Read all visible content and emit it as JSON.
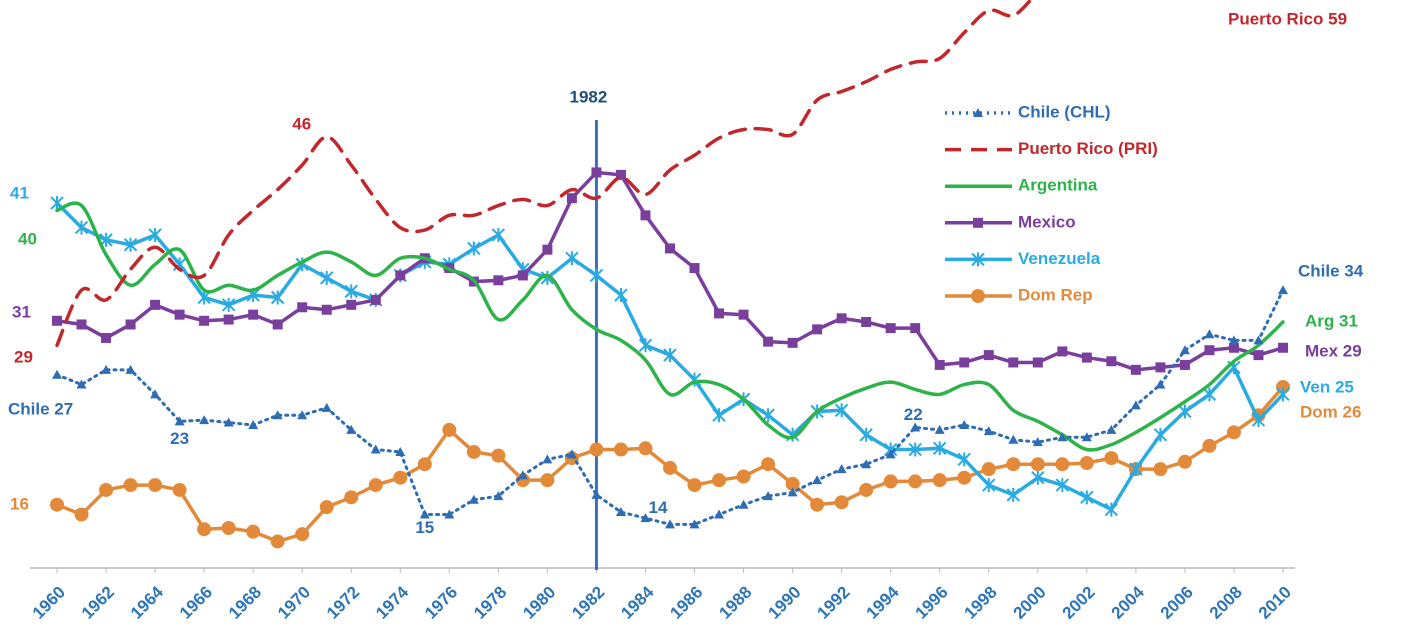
{
  "chart_data": {
    "type": "line",
    "x": [
      1960,
      1961,
      1962,
      1963,
      1964,
      1965,
      1966,
      1967,
      1968,
      1969,
      1970,
      1971,
      1972,
      1973,
      1974,
      1975,
      1976,
      1977,
      1978,
      1979,
      1980,
      1981,
      1982,
      1983,
      1984,
      1985,
      1986,
      1987,
      1988,
      1989,
      1990,
      1991,
      1992,
      1993,
      1994,
      1995,
      1996,
      1997,
      1998,
      1999,
      2000,
      2001,
      2002,
      2003,
      2004,
      2005,
      2006,
      2007,
      2008,
      2009,
      2010
    ],
    "xlim": [
      1960,
      2010
    ],
    "xticks": [
      1960,
      1962,
      1964,
      1966,
      1968,
      1970,
      1972,
      1974,
      1976,
      1978,
      1980,
      1982,
      1984,
      1986,
      1988,
      1990,
      1992,
      1994,
      1996,
      1998,
      2000,
      2002,
      2004,
      2006,
      2008,
      2010
    ],
    "ylim": [
      11,
      57
    ],
    "vline": 1982,
    "series": [
      {
        "name": "Chile (CHL)",
        "color": "#2e6db4",
        "style": "dotted",
        "marker": "triangle",
        "start_label": "Chile 27",
        "end_label": "Chile 34",
        "point_labels": [
          {
            "x": 1965,
            "label": "23"
          },
          {
            "x": 1975,
            "label": "15"
          },
          {
            "x": 1985,
            "label": "14"
          },
          {
            "x": 1995,
            "label": "22"
          }
        ],
        "values": [
          26.6,
          25.8,
          27,
          27,
          25,
          22.8,
          22.9,
          22.7,
          22.5,
          23.3,
          23.3,
          23.9,
          22.1,
          20.5,
          20.3,
          15.2,
          15.2,
          16.4,
          16.7,
          18.4,
          19.7,
          20.1,
          16.8,
          15.4,
          14.9,
          14.4,
          14.4,
          15.2,
          16,
          16.7,
          17,
          18,
          18.9,
          19.3,
          20.1,
          22.3,
          22.1,
          22.5,
          22,
          21.3,
          21.1,
          21.5,
          21.5,
          22.1,
          24.1,
          25.8,
          28.6,
          29.9,
          29.4,
          29.4,
          33.5
        ]
      },
      {
        "name": "Puerto Rico (PRI)",
        "color": "#c0282d",
        "style": "dashed",
        "smooth": true,
        "start_label": "29",
        "end_label": "Puerto Rico 59",
        "point_labels": [
          {
            "x": 1971,
            "label": "46"
          }
        ],
        "values": [
          29,
          33.5,
          32.7,
          35.2,
          37,
          35.2,
          34.7,
          38,
          40,
          41.7,
          43.7,
          46,
          43.7,
          40.9,
          38.6,
          38.4,
          39.6,
          39.6,
          40.4,
          40.9,
          40.4,
          41.7,
          41,
          42.7,
          41.3,
          43.3,
          44.5,
          45.9,
          46.6,
          46.6,
          46.2,
          49,
          49.7,
          50.5,
          51.5,
          52.1,
          52.4,
          54.5,
          56.3,
          55.9,
          57.6,
          57.8,
          58,
          58.1,
          58.2,
          58.4,
          58.5,
          58.6,
          58.8,
          58.9,
          59
        ]
      },
      {
        "name": "Argentina",
        "color": "#2db34a",
        "style": "solid",
        "smooth": true,
        "start_label": "40",
        "end_label": "Arg 31",
        "values": [
          40,
          40.4,
          36.4,
          33.9,
          35.6,
          36.8,
          33.5,
          33.9,
          33.5,
          34.7,
          35.8,
          36.6,
          35.8,
          34.7,
          36.1,
          36.1,
          35.2,
          34.3,
          31.1,
          32.7,
          34.7,
          31.9,
          30.3,
          29.4,
          27.8,
          25,
          26,
          25.8,
          24.6,
          22.5,
          21.5,
          23.6,
          24.7,
          25.5,
          26,
          25.4,
          25,
          25.8,
          25.8,
          23.7,
          22.8,
          21.7,
          20.5,
          20.9,
          21.9,
          23.1,
          24.4,
          25.8,
          27.7,
          29,
          30.9
        ]
      },
      {
        "name": "Mexico",
        "color": "#7a3f9d",
        "style": "solid",
        "marker": "square",
        "start_label": "31",
        "end_label": "Mex 29",
        "values": [
          31,
          30.7,
          29.6,
          30.7,
          32.3,
          31.5,
          31,
          31.1,
          31.5,
          30.7,
          32.1,
          31.9,
          32.3,
          32.7,
          34.7,
          36.1,
          35.3,
          34.2,
          34.3,
          34.7,
          36.8,
          41,
          43.1,
          42.9,
          39.6,
          36.9,
          35.3,
          31.6,
          31.5,
          29.3,
          29.2,
          30.3,
          31.2,
          30.9,
          30.4,
          30.4,
          27.4,
          27.6,
          28.2,
          27.6,
          27.6,
          28.5,
          28,
          27.7,
          27,
          27.2,
          27.4,
          28.6,
          28.8,
          28.2,
          28.8
        ]
      },
      {
        "name": "Venezuela",
        "color": "#29abe2",
        "style": "solid",
        "marker": "star",
        "start_label": "41",
        "end_label": "Ven 25",
        "values": [
          40.6,
          38.6,
          37.6,
          37.2,
          38,
          35.6,
          32.9,
          32.3,
          33.1,
          32.9,
          35.6,
          34.5,
          33.4,
          32.7,
          34.7,
          35.8,
          35.6,
          36.9,
          38,
          35.2,
          34.5,
          36.1,
          34.7,
          33.1,
          29,
          28.2,
          26.2,
          23.3,
          24.6,
          23.3,
          21.7,
          23.6,
          23.7,
          21.7,
          20.5,
          20.5,
          20.6,
          19.7,
          17.6,
          16.8,
          18.2,
          17.6,
          16.6,
          15.6,
          18.9,
          21.7,
          23.6,
          25,
          27.2,
          22.9,
          25
        ]
      },
      {
        "name": "Dom Rep",
        "color": "#e38a3a",
        "style": "solid",
        "marker": "circle",
        "start_label": "16",
        "end_label": "Dom 26",
        "values": [
          16,
          15.2,
          17.2,
          17.6,
          17.6,
          17.2,
          14,
          14.1,
          13.8,
          13,
          13.6,
          15.8,
          16.6,
          17.6,
          18.2,
          19.3,
          22.1,
          20.3,
          20,
          18,
          18,
          19.8,
          20.5,
          20.5,
          20.6,
          19,
          17.6,
          18,
          18.3,
          19.3,
          17.7,
          16,
          16.2,
          17.2,
          17.9,
          17.9,
          18,
          18.2,
          18.9,
          19.3,
          19.3,
          19.3,
          19.4,
          19.8,
          18.9,
          18.9,
          19.5,
          20.8,
          21.9,
          23.3,
          25.6
        ]
      }
    ]
  }
}
